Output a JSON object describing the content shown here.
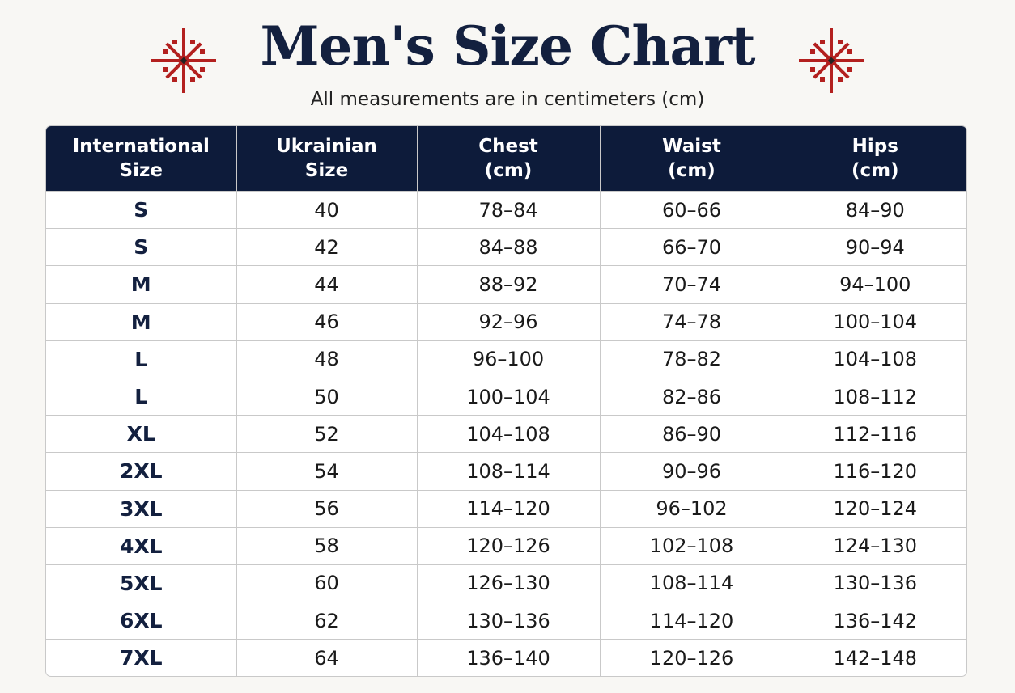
{
  "header": {
    "title": "Men's Size Chart",
    "subtitle": "All measurements are in centimeters (cm)"
  },
  "table": {
    "columns": [
      "International Size",
      "Ukrainian Size",
      "Chest (cm)",
      "Waist (cm)",
      "Hips (cm)"
    ],
    "rows": [
      [
        "S",
        "40",
        "78–84",
        "60–66",
        "84–90"
      ],
      [
        "S",
        "42",
        "84–88",
        "66–70",
        "90–94"
      ],
      [
        "M",
        "44",
        "88–92",
        "70–74",
        "94–100"
      ],
      [
        "M",
        "46",
        "92–96",
        "74–78",
        "100–104"
      ],
      [
        "L",
        "48",
        "96–100",
        "78–82",
        "104–108"
      ],
      [
        "L",
        "50",
        "100–104",
        "82–86",
        "108–112"
      ],
      [
        "XL",
        "52",
        "104–108",
        "86–90",
        "112–116"
      ],
      [
        "2XL",
        "54",
        "108–114",
        "90–96",
        "116–120"
      ],
      [
        "3XL",
        "56",
        "114–120",
        "96–102",
        "120–124"
      ],
      [
        "4XL",
        "58",
        "120–126",
        "102–108",
        "124–130"
      ],
      [
        "5XL",
        "60",
        "126–130",
        "108–114",
        "130–136"
      ],
      [
        "6XL",
        "62",
        "130–136",
        "114–120",
        "136–142"
      ],
      [
        "7XL",
        "64",
        "136–140",
        "120–126",
        "142–148"
      ]
    ]
  }
}
